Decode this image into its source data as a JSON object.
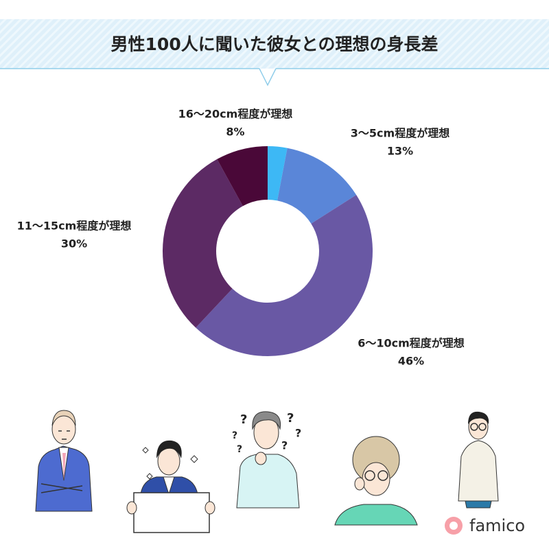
{
  "chart_data": {
    "type": "donut",
    "title": "男性100人に聞いた彼女との理想の身長差",
    "categories": [
      null,
      "3〜5cm程度が理想",
      "6〜10cm程度が理想",
      "11〜15cm程度が理想",
      "16〜20cm程度が理想"
    ],
    "values": [
      3,
      13,
      46,
      30,
      8
    ],
    "value_labels": [
      null,
      "13%",
      "46%",
      "30%",
      "8%"
    ],
    "colors": [
      "#3db8f5",
      "#5a86d8",
      "#6958a4",
      "#5c2a64",
      "#4a0838"
    ]
  },
  "brand": "famico"
}
